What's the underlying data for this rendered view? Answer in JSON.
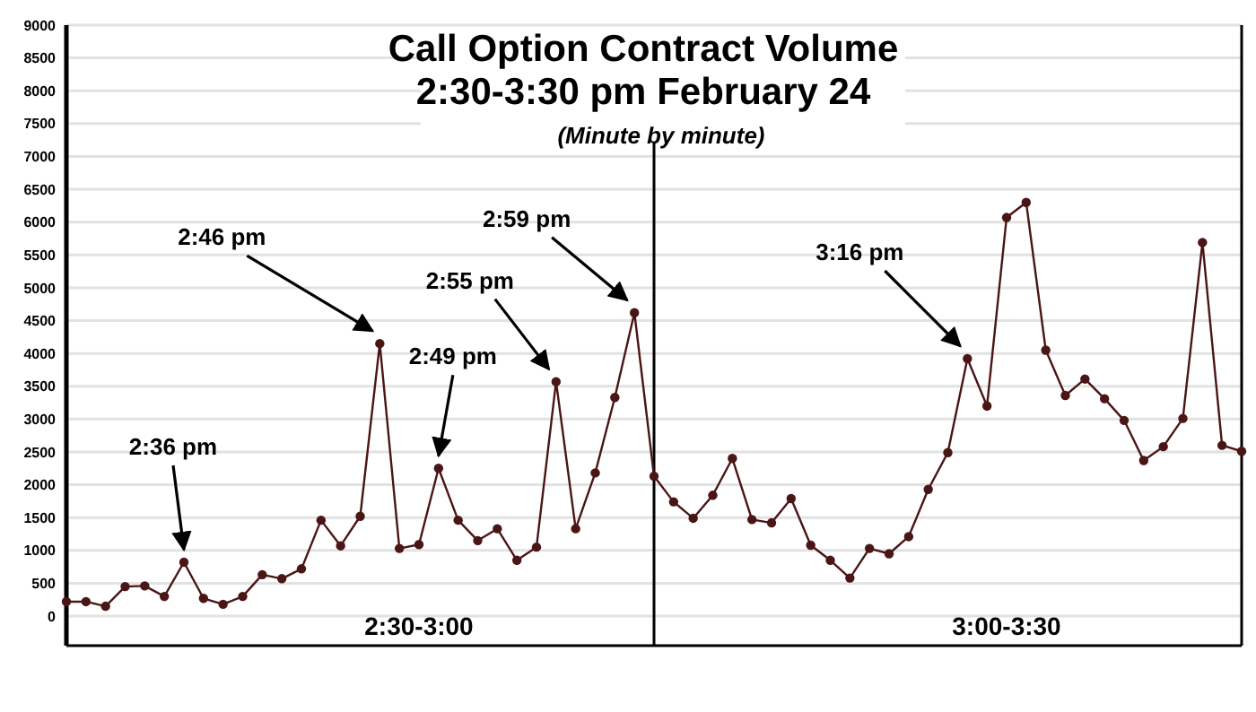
{
  "chart_data": {
    "type": "line",
    "title": "Call Option Contract Volume\n2:30-3:30 pm February 24",
    "subtitle": "(Minute by minute)",
    "categories": [
      null,
      null,
      null,
      null,
      null,
      null,
      null,
      null,
      null,
      null,
      null,
      null,
      null,
      null,
      null,
      null,
      null,
      null,
      null,
      null,
      null,
      null,
      null,
      null,
      null,
      null,
      null,
      null,
      null,
      null,
      null,
      null,
      null,
      null,
      null,
      null,
      null,
      null,
      null,
      null,
      null,
      null,
      null,
      null,
      null,
      null,
      null,
      null,
      null,
      null,
      null,
      null,
      null,
      null,
      null,
      null,
      null,
      null,
      null,
      null,
      null
    ],
    "series": [
      {
        "color": "#4a1515",
        "values": [
          220,
          220,
          150,
          450,
          460,
          300,
          820,
          270,
          180,
          300,
          630,
          570,
          720,
          1460,
          1070,
          1520,
          4150,
          1030,
          1090,
          2250,
          1460,
          1150,
          1330,
          850,
          1050,
          3570,
          1330,
          2180,
          3330,
          4620,
          2130,
          1740,
          1490,
          1840,
          2400,
          1470,
          1420,
          1790,
          1080,
          850,
          580,
          1030,
          950,
          1210,
          1930,
          2490,
          3920,
          3200,
          6070,
          6300,
          4050,
          3360,
          3610,
          3310,
          2980,
          2370,
          2580,
          3010,
          5690,
          2600,
          2510
        ]
      }
    ],
    "ylim": [
      -450,
      9000
    ],
    "yticks": [
      0,
      500,
      1000,
      1500,
      2000,
      2500,
      3000,
      3500,
      4000,
      4500,
      5000,
      5500,
      6000,
      6500,
      7000,
      7500,
      8000,
      8500,
      9000
    ],
    "tick_labels": "y",
    "grid": "y",
    "marker": "circle",
    "line_style": "solid",
    "annotations": [
      "2:36 pm",
      "2:46 pm",
      "2:49 pm",
      "2:55 pm",
      "2:59 pm",
      "3:16 pm",
      "2:30-3:00",
      "3:00-3:30"
    ]
  }
}
